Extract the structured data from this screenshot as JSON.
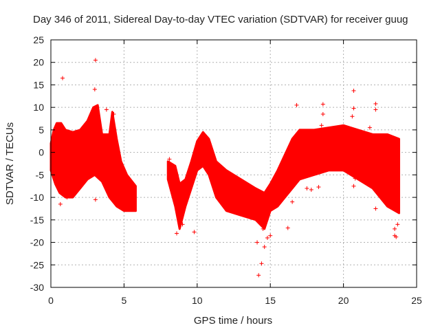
{
  "chart_data": {
    "type": "scatter",
    "title": "Day 346 of 2011, Sidereal Day-to-day VTEC variation (SDTVAR) for receiver guug",
    "xlabel": "GPS time / hours",
    "ylabel": "SDTVAR / TECUs",
    "xlim": [
      0,
      25
    ],
    "ylim": [
      -30,
      25
    ],
    "xticks": [
      0,
      5,
      10,
      15,
      20,
      25
    ],
    "yticks": [
      -30,
      -25,
      -20,
      -15,
      -10,
      -5,
      0,
      5,
      10,
      15,
      20,
      25
    ],
    "grid": true,
    "marker": "+",
    "colors": {
      "series": "#ff0000",
      "grid": "#b0b0b0",
      "axis": "#000000"
    },
    "bands": [
      {
        "x": [
          0.0,
          5.8
        ],
        "note": "dense band",
        "upper": [
          [
            0,
            2
          ],
          [
            0.2,
            5
          ],
          [
            0.4,
            6.5
          ],
          [
            0.7,
            6.5
          ],
          [
            1.0,
            5
          ],
          [
            1.5,
            4.5
          ],
          [
            2.0,
            5
          ],
          [
            2.5,
            7
          ],
          [
            2.9,
            10
          ],
          [
            3.2,
            10.5
          ],
          [
            3.5,
            4
          ],
          [
            4.0,
            4
          ],
          [
            4.2,
            9
          ],
          [
            4.5,
            3
          ],
          [
            4.8,
            -2
          ],
          [
            5.2,
            -5
          ],
          [
            5.8,
            -7.5
          ]
        ],
        "lower": [
          [
            0,
            -4
          ],
          [
            0.3,
            -7
          ],
          [
            0.6,
            -9
          ],
          [
            1.0,
            -10
          ],
          [
            1.5,
            -10
          ],
          [
            2.0,
            -8
          ],
          [
            2.5,
            -6
          ],
          [
            3.0,
            -5
          ],
          [
            3.5,
            -6.5
          ],
          [
            4.0,
            -10
          ],
          [
            4.5,
            -12
          ],
          [
            5.0,
            -13
          ],
          [
            5.8,
            -13
          ]
        ]
      },
      {
        "x": [
          8.0,
          23.8
        ],
        "note": "dense band",
        "upper": [
          [
            8.0,
            -2
          ],
          [
            8.5,
            -3
          ],
          [
            8.8,
            -7
          ],
          [
            9.2,
            -6
          ],
          [
            9.6,
            -2
          ],
          [
            10.0,
            2.5
          ],
          [
            10.4,
            4.5
          ],
          [
            10.8,
            3
          ],
          [
            11.3,
            -2
          ],
          [
            12.0,
            -4
          ],
          [
            13.0,
            -6
          ],
          [
            14.0,
            -8
          ],
          [
            14.6,
            -9
          ],
          [
            15.0,
            -7
          ],
          [
            15.5,
            -4
          ],
          [
            16.0,
            -0.5
          ],
          [
            16.5,
            3
          ],
          [
            17.0,
            5
          ],
          [
            18.0,
            5
          ],
          [
            19.0,
            5.5
          ],
          [
            20.0,
            6
          ],
          [
            21.0,
            5
          ],
          [
            22.0,
            4
          ],
          [
            23.0,
            4
          ],
          [
            23.8,
            3
          ]
        ],
        "lower": [
          [
            8.0,
            -6
          ],
          [
            8.5,
            -12
          ],
          [
            8.8,
            -17
          ],
          [
            9.2,
            -12
          ],
          [
            9.6,
            -8
          ],
          [
            10.0,
            -4
          ],
          [
            10.4,
            -3
          ],
          [
            10.8,
            -5
          ],
          [
            11.3,
            -10
          ],
          [
            12.0,
            -13
          ],
          [
            13.0,
            -14
          ],
          [
            14.0,
            -15
          ],
          [
            14.6,
            -17
          ],
          [
            15.0,
            -13
          ],
          [
            15.5,
            -12
          ],
          [
            16.0,
            -10
          ],
          [
            16.5,
            -8
          ],
          [
            17.0,
            -6
          ],
          [
            18.0,
            -5
          ],
          [
            19.0,
            -4
          ],
          [
            20.0,
            -4
          ],
          [
            21.0,
            -6
          ],
          [
            22.0,
            -8
          ],
          [
            23.0,
            -12
          ],
          [
            23.8,
            -13.5
          ]
        ]
      }
    ],
    "outliers": [
      {
        "x": 0.8,
        "y": 16.5
      },
      {
        "x": 3.05,
        "y": 20.5
      },
      {
        "x": 3.05,
        "y": -10.5
      },
      {
        "x": 3.8,
        "y": 9.5
      },
      {
        "x": 4.3,
        "y": 8.5
      },
      {
        "x": 4.2,
        "y": -2.5
      },
      {
        "x": 0.65,
        "y": -11.5
      },
      {
        "x": 1.1,
        "y": -10
      },
      {
        "x": 3.0,
        "y": 14
      },
      {
        "x": 8.1,
        "y": -1.5
      },
      {
        "x": 9.8,
        "y": -17.7
      },
      {
        "x": 8.6,
        "y": -18
      },
      {
        "x": 14.2,
        "y": -27.3
      },
      {
        "x": 14.4,
        "y": -24.7
      },
      {
        "x": 14.6,
        "y": -21
      },
      {
        "x": 14.1,
        "y": -20
      },
      {
        "x": 14.8,
        "y": -19
      },
      {
        "x": 15.0,
        "y": -18.5
      },
      {
        "x": 16.2,
        "y": -16.8
      },
      {
        "x": 16.5,
        "y": -11
      },
      {
        "x": 16.8,
        "y": 10.5
      },
      {
        "x": 17.5,
        "y": -8
      },
      {
        "x": 17.8,
        "y": -8.3
      },
      {
        "x": 18.3,
        "y": -7.7
      },
      {
        "x": 18.6,
        "y": 10.7
      },
      {
        "x": 18.6,
        "y": 8.5
      },
      {
        "x": 18.5,
        "y": 6
      },
      {
        "x": 20.7,
        "y": 13.7
      },
      {
        "x": 20.7,
        "y": 9.8
      },
      {
        "x": 20.6,
        "y": 8
      },
      {
        "x": 20.8,
        "y": -5.8
      },
      {
        "x": 20.7,
        "y": -7.5
      },
      {
        "x": 22.2,
        "y": 10.8
      },
      {
        "x": 22.2,
        "y": 9.5
      },
      {
        "x": 22.2,
        "y": -12.5
      },
      {
        "x": 21.8,
        "y": 5.5
      },
      {
        "x": 23.5,
        "y": -17
      },
      {
        "x": 23.5,
        "y": -18.5
      },
      {
        "x": 23.6,
        "y": -18.8
      },
      {
        "x": 23.7,
        "y": -16
      },
      {
        "x": 9.0,
        "y": -16
      },
      {
        "x": 14.5,
        "y": -17
      }
    ]
  }
}
